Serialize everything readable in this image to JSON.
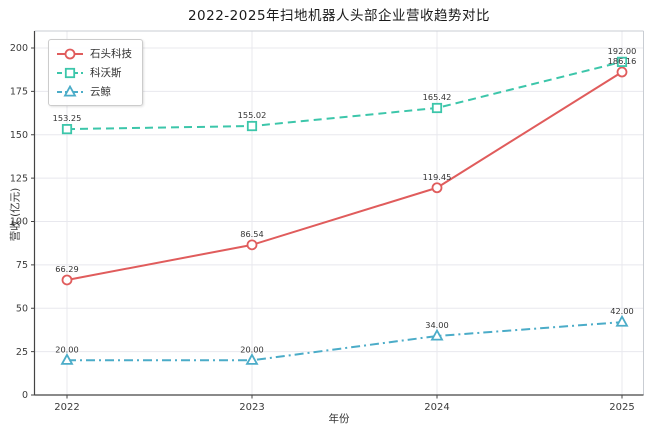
{
  "title": "2022-2025年扫地机器人头部企业营收趋势对比",
  "chart_data": {
    "type": "line",
    "title": "2022-2025年扫地机器人头部企业营收趋势对比",
    "xlabel": "年份",
    "ylabel": "营收 (亿元)",
    "x": [
      "2022",
      "2023",
      "2024",
      "2025"
    ],
    "yticks": [
      "0",
      "25",
      "50",
      "75",
      "100",
      "125",
      "150",
      "175",
      "200"
    ],
    "ylim": [
      0,
      210
    ],
    "grid": true,
    "legend_position": "upper-left",
    "series": [
      {
        "name": "石头科技",
        "values": [
          66.29,
          86.54,
          119.45,
          186.16
        ],
        "labels": [
          "66.29",
          "86.54",
          "119.45",
          "186.16"
        ],
        "color": "#e05c5c",
        "line_style": "solid",
        "marker": "circle"
      },
      {
        "name": "科沃斯",
        "values": [
          153.25,
          155.02,
          165.42,
          192.0
        ],
        "labels": [
          "153.25",
          "155.02",
          "165.42",
          "192.00"
        ],
        "color": "#3cc6aa",
        "line_style": "dashed",
        "marker": "square"
      },
      {
        "name": "云鲸",
        "values": [
          20.0,
          20.0,
          34.0,
          42.0
        ],
        "labels": [
          "20.00",
          "20.00",
          "34.00",
          "42.00"
        ],
        "color": "#4bacc8",
        "line_style": "dashdot",
        "marker": "triangle"
      }
    ]
  }
}
